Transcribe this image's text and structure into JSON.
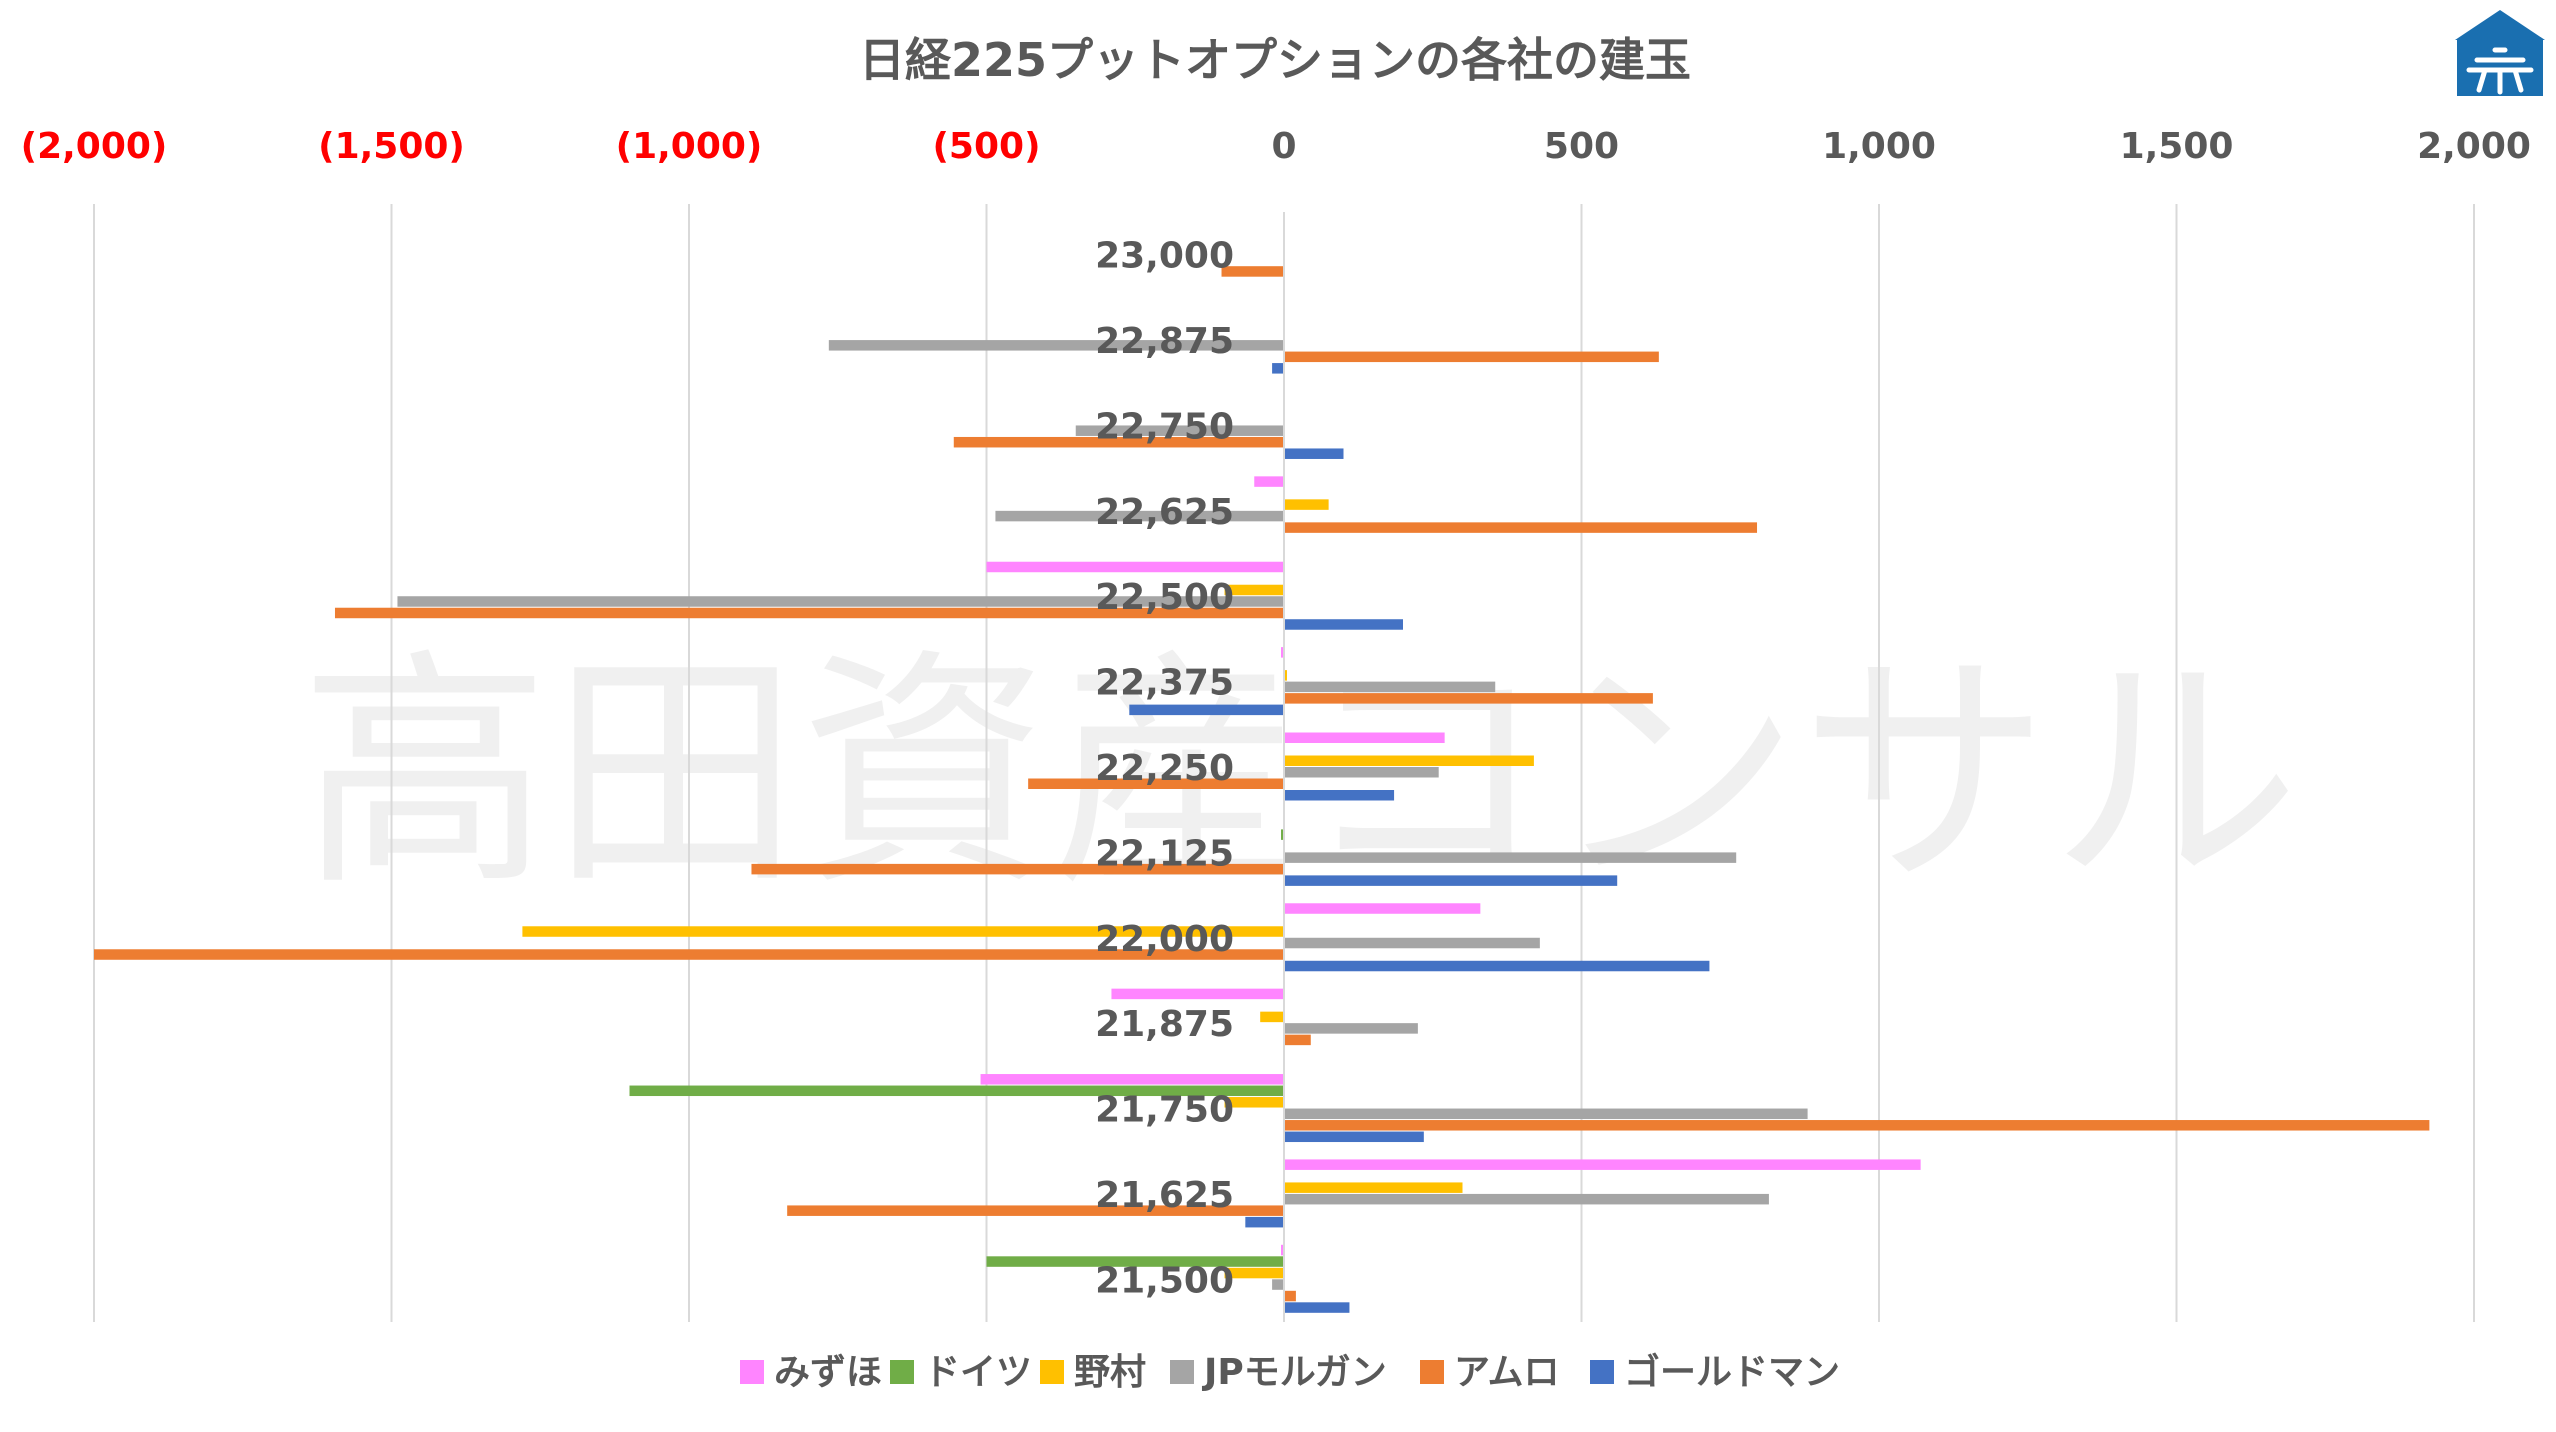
{
  "chart_data": {
    "type": "bar",
    "orientation": "horizontal",
    "title": "日経225プットオプションの各社の建玉",
    "xlim": [
      -2000,
      2000
    ],
    "x_ticks": [
      -2000,
      -1500,
      -1000,
      -500,
      0,
      500,
      1000,
      1500,
      2000
    ],
    "x_tick_labels": [
      "(2,000)",
      "(1,500)",
      "(1,000)",
      "(500)",
      "0",
      "500",
      "1,000",
      "1,500",
      "2,000"
    ],
    "negative_tick_color": "#ff0000",
    "positive_tick_color": "#595959",
    "categories": [
      "23,000",
      "22,875",
      "22,750",
      "22,625",
      "22,500",
      "22,375",
      "22,250",
      "22,125",
      "22,000",
      "21,875",
      "21,750",
      "21,625",
      "21,500"
    ],
    "series": [
      {
        "name": "みずほ",
        "color": "#ff85ff",
        "values": [
          0,
          0,
          0,
          -50,
          -500,
          -5,
          270,
          0,
          330,
          -290,
          -510,
          1070,
          -5
        ]
      },
      {
        "name": "ドイツ",
        "color": "#70ad47",
        "values": [
          0,
          0,
          0,
          0,
          0,
          0,
          0,
          -5,
          0,
          0,
          -1100,
          0,
          -500
        ]
      },
      {
        "name": "野村",
        "color": "#ffc000",
        "values": [
          0,
          0,
          0,
          75,
          -100,
          5,
          420,
          0,
          -1280,
          -40,
          -100,
          300,
          -100
        ]
      },
      {
        "name": "JPモルガン",
        "color": "#a5a5a5",
        "values": [
          0,
          -765,
          -350,
          -485,
          -1490,
          355,
          260,
          760,
          430,
          225,
          880,
          815,
          -20
        ]
      },
      {
        "name": "アムロ",
        "color": "#ed7d31",
        "values": [
          -105,
          630,
          -555,
          795,
          -1595,
          620,
          -430,
          -895,
          -2000,
          45,
          1925,
          -835,
          20
        ]
      },
      {
        "name": "ゴールドマン",
        "color": "#4472c4",
        "values": [
          0,
          -20,
          100,
          0,
          200,
          -260,
          185,
          560,
          715,
          0,
          235,
          -65,
          110
        ]
      }
    ],
    "legend_position": "bottom",
    "grid": true
  },
  "watermark": "高田資産コンサル",
  "logo": {
    "name": "高田資産コンサル logo",
    "color": "#1a6fb0"
  }
}
